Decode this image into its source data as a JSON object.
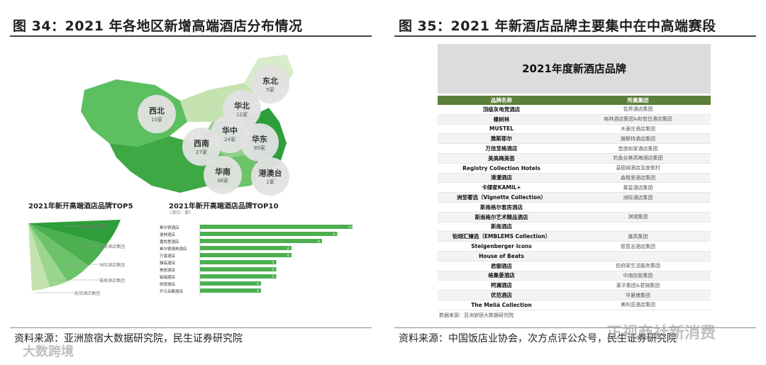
{
  "left": {
    "title": "图 34：2021 年各地区新增高端酒店分布情况",
    "source": "资料来源：亚洲旅宿大数据研究院，民生证券研究院",
    "regions": [
      {
        "name": "东北",
        "count": "5家"
      },
      {
        "name": "西北",
        "count": "10家"
      },
      {
        "name": "华北",
        "count": "12家"
      },
      {
        "name": "华中",
        "count": "24家"
      },
      {
        "name": "西南",
        "count": "27家"
      },
      {
        "name": "华东",
        "count": "80家"
      },
      {
        "name": "华南",
        "count": "36家"
      },
      {
        "name": "港澳台",
        "count": "1家"
      }
    ],
    "top5_title": "2021年新开高端酒店品牌TOP5",
    "top5_items": [
      "希尔顿酒店集团",
      "万豪酒店集团",
      "洲际酒店集团",
      "雅高酒店集团",
      "凯悦酒店集团"
    ],
    "top10_title": "2021年新开高端酒店品牌TOP10",
    "top10_note": "(单位：家)",
    "top10_bars": [
      {
        "label": "希尔顿酒店",
        "value": 10
      },
      {
        "label": "逸林酒店",
        "value": 9
      },
      {
        "label": "嘉悦里酒店",
        "value": 8
      },
      {
        "label": "希尔顿逸林酒店",
        "value": 6
      },
      {
        "label": "万豪酒店",
        "value": 6
      },
      {
        "label": "雅高酒店",
        "value": 5
      },
      {
        "label": "美居酒店",
        "value": 5
      },
      {
        "label": "铂瑞酒店",
        "value": 5
      },
      {
        "label": "凯悦酒店",
        "value": 4
      },
      {
        "label": "开元名都酒店",
        "value": 4
      }
    ]
  },
  "right": {
    "title": "图 35：2021 年新酒店品牌主要集中在中高端赛段",
    "source": "资料来源：中国饭店业协会，次方点评公众号，民生证券研究院",
    "table_title": "2021年度新酒店品牌",
    "col_brand": "品牌名称",
    "col_group": "所属集团",
    "rows": [
      {
        "brand": "顶级灰电竞酒店",
        "group": "花界酒店集团"
      },
      {
        "brand": "橡树林",
        "group": "格林酒店集团&和悦住酒店集团"
      },
      {
        "brand": "MUSTEL",
        "group": "木莲庄酒店集团"
      },
      {
        "brand": "雅斯耶尔",
        "group": "雅斯特酒店集团"
      },
      {
        "brand": "万信至格酒店",
        "group": "首旅如家酒店集团"
      },
      {
        "brand": "美高梅美荟",
        "group": "钓鱼台美高梅酒店集团"
      },
      {
        "brand": "Registry Collection Hotels",
        "group": "温德姆酒店及度假村"
      },
      {
        "brand": "清漫酒店",
        "group": "森橙里酒店集团"
      },
      {
        "brand": "卡缪家KAMIL+",
        "group": "莱星酒店集团"
      },
      {
        "brand": "洲至奢选（Vignette Collection）",
        "group": "洲际酒店集团"
      },
      {
        "brand": "斯南格尔套房酒店",
        "group": ""
      },
      {
        "brand": "斯南格尔艺术精品酒店",
        "group": "淇城集团"
      },
      {
        "brand": "斯南酒店",
        "group": ""
      },
      {
        "brand": "铂翊汇臻选（EMBLEMS Collection）",
        "group": "雅高集团"
      },
      {
        "brand": "Steigenberger Icons",
        "group": "德意志酒店集团"
      },
      {
        "brand": "House of Beats",
        "group": ""
      },
      {
        "brand": "君御酒店",
        "group": "伯府家生活服务集团"
      },
      {
        "brand": "格集曼酒店",
        "group": "中南控股集团"
      },
      {
        "brand": "柯澜酒店",
        "group": "莱平集团&君锦集团"
      },
      {
        "brand": "优范酒店",
        "group": "华夏猪集团"
      },
      {
        "brand": "The Meliá Collection",
        "group": "美利亚酒店集团"
      }
    ],
    "table_note": "数据来源：亚洲旅宿大数据研究院"
  },
  "watermarks": {
    "left": "大数跨境",
    "right": "正视商社新消费"
  },
  "colors": {
    "accent_green": "#4caf50",
    "header_green": "#5c7f3c",
    "light_green": "#c5e3b0",
    "dark_green": "#2e7d32"
  }
}
